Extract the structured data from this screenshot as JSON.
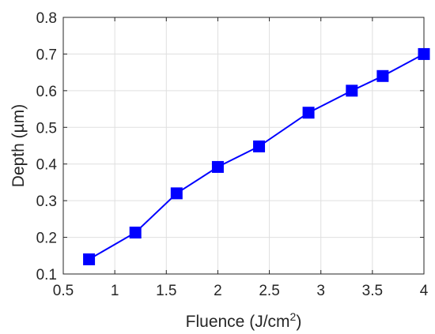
{
  "chart_data": {
    "type": "line",
    "title": "",
    "xlabel": "Fluence (J/cm",
    "xlabel_sup": "2",
    "xlabel_suffix": ")",
    "ylabel": "Depth (µm)",
    "xlim": [
      0.5,
      4
    ],
    "ylim": [
      0.1,
      0.8
    ],
    "xticks": [
      0.5,
      1,
      1.5,
      2,
      2.5,
      3,
      3.5,
      4
    ],
    "yticks": [
      0.1,
      0.2,
      0.3,
      0.4,
      0.5,
      0.6,
      0.7,
      0.8
    ],
    "xtick_labels": [
      "0.5",
      "1",
      "1.5",
      "2",
      "2.5",
      "3",
      "3.5",
      "4"
    ],
    "ytick_labels": [
      "0.1",
      "0.2",
      "0.3",
      "0.4",
      "0.5",
      "0.6",
      "0.7",
      "0.8"
    ],
    "grid": true,
    "legend": "none",
    "series": [
      {
        "x": [
          0.75,
          1.2,
          1.6,
          2.0,
          2.4,
          2.88,
          3.3,
          3.6,
          4.0
        ],
        "y": [
          0.14,
          0.213,
          0.32,
          0.392,
          0.448,
          0.54,
          0.6,
          0.64,
          0.7
        ],
        "color": "#0000ff",
        "marker": "square"
      }
    ]
  }
}
